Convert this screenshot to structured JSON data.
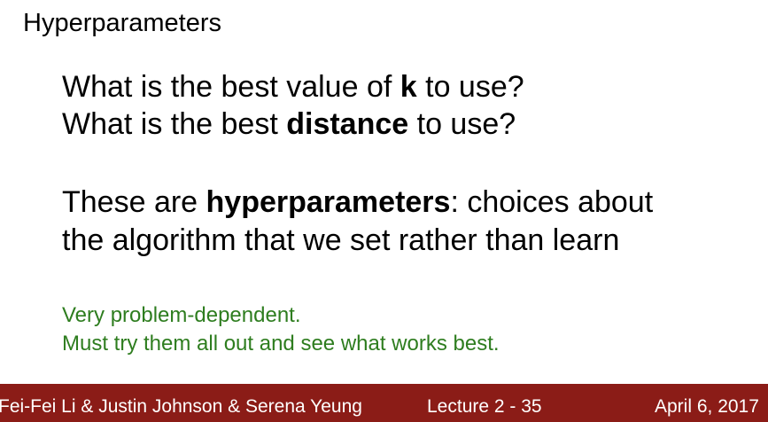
{
  "slide": {
    "title": "Hyperparameters",
    "questions": {
      "q1_before": "What is the best value of ",
      "q1_bold": "k",
      "q1_after": " to use?",
      "q2_before": "What is the best ",
      "q2_bold": "distance",
      "q2_after": " to use?"
    },
    "definition": {
      "before": "These are ",
      "bold": "hyperparameters",
      "after": ": choices about",
      "line2": "the algorithm that we set rather than learn"
    },
    "notes": {
      "line1": "Very problem-dependent.",
      "line2": "Must try them all out and see what works best."
    },
    "colors": {
      "notes_green": "#2e7d1f",
      "footer_red": "#8b1c17"
    }
  },
  "footer": {
    "authors": "Fei-Fei Li & Justin Johnson & Serena Yeung",
    "lecture": "Lecture 2 -  35",
    "date": "April 6, 2017"
  }
}
